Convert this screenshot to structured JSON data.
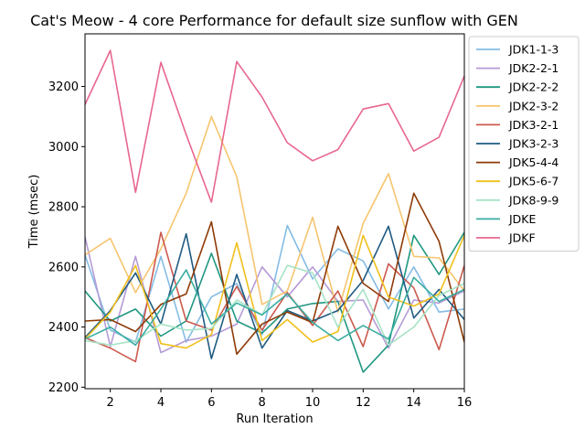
{
  "chart_data": {
    "type": "line",
    "title": "Cat's Meow - 4 core Performance for default size sunflow with GEN",
    "xlabel": "Run Iteration",
    "ylabel": "Time (msec)",
    "xlim": [
      1,
      16
    ],
    "ylim": [
      2195,
      3375
    ],
    "xticks": [
      2,
      4,
      6,
      8,
      10,
      12,
      14,
      16
    ],
    "yticks": [
      2200,
      2400,
      2600,
      2800,
      3000,
      3200
    ],
    "grid": false,
    "legend_position": "right",
    "x": [
      1,
      2,
      3,
      4,
      5,
      6,
      7,
      8,
      9,
      10,
      11,
      12,
      13,
      14,
      15,
      16
    ],
    "series": [
      {
        "name": "JDK1-1-3",
        "color": "#85bce5",
        "values": [
          2640,
          2390,
          2350,
          2635,
          2350,
          2500,
          2545,
          2375,
          2738,
          2560,
          2660,
          2620,
          2460,
          2600,
          2450,
          2460
        ]
      },
      {
        "name": "JDK2-2-1",
        "color": "#b59bd7",
        "values": [
          2700,
          2335,
          2635,
          2315,
          2355,
          2370,
          2410,
          2600,
          2500,
          2600,
          2485,
          2490,
          2330,
          2490,
          2480,
          2520
        ]
      },
      {
        "name": "JDK2-2-2",
        "color": "#1f9780",
        "values": [
          2520,
          2420,
          2460,
          2370,
          2420,
          2645,
          2420,
          2380,
          2460,
          2478,
          2485,
          2250,
          2340,
          2705,
          2575,
          2715
        ]
      },
      {
        "name": "JDK2-3-2",
        "color": "#f6c56f",
        "values": [
          2640,
          2695,
          2515,
          2660,
          2845,
          3100,
          2900,
          2475,
          2520,
          2765,
          2450,
          2745,
          2910,
          2635,
          2630,
          2520
        ]
      },
      {
        "name": "JDK3-2-1",
        "color": "#cc5a4e",
        "values": [
          2365,
          2330,
          2285,
          2715,
          2420,
          2390,
          2535,
          2390,
          2515,
          2405,
          2520,
          2335,
          2610,
          2530,
          2325,
          2605
        ]
      },
      {
        "name": "JDK3-2-3",
        "color": "#1f5b82",
        "values": [
          2365,
          2455,
          2580,
          2410,
          2710,
          2295,
          2575,
          2330,
          2455,
          2420,
          2455,
          2555,
          2735,
          2430,
          2525,
          2425
        ]
      },
      {
        "name": "JDK5-4-4",
        "color": "#8e3b07",
        "values": [
          2420,
          2425,
          2385,
          2475,
          2510,
          2750,
          2310,
          2410,
          2450,
          2415,
          2735,
          2545,
          2485,
          2845,
          2685,
          2350
        ]
      },
      {
        "name": "JDK5-6-7",
        "color": "#f0c01d",
        "values": [
          2360,
          2450,
          2605,
          2345,
          2330,
          2375,
          2680,
          2355,
          2425,
          2350,
          2385,
          2705,
          2500,
          2470,
          2510,
          2705
        ]
      },
      {
        "name": "JDK8-9-9",
        "color": "#a7e3c6",
        "values": [
          2355,
          2340,
          2355,
          2410,
          2390,
          2395,
          2490,
          2440,
          2605,
          2580,
          2400,
          2525,
          2340,
          2400,
          2505,
          2545
        ]
      },
      {
        "name": "JDKE",
        "color": "#3aada0",
        "values": [
          2360,
          2400,
          2340,
          2460,
          2590,
          2410,
          2480,
          2440,
          2510,
          2415,
          2355,
          2405,
          2360,
          2565,
          2485,
          2525
        ]
      },
      {
        "name": "JDKF",
        "color": "#e8678e",
        "values": [
          3140,
          3320,
          2848,
          3280,
          3040,
          2815,
          3283,
          3165,
          3013,
          2953,
          2990,
          3125,
          3143,
          2985,
          3031,
          3235
        ]
      }
    ]
  }
}
